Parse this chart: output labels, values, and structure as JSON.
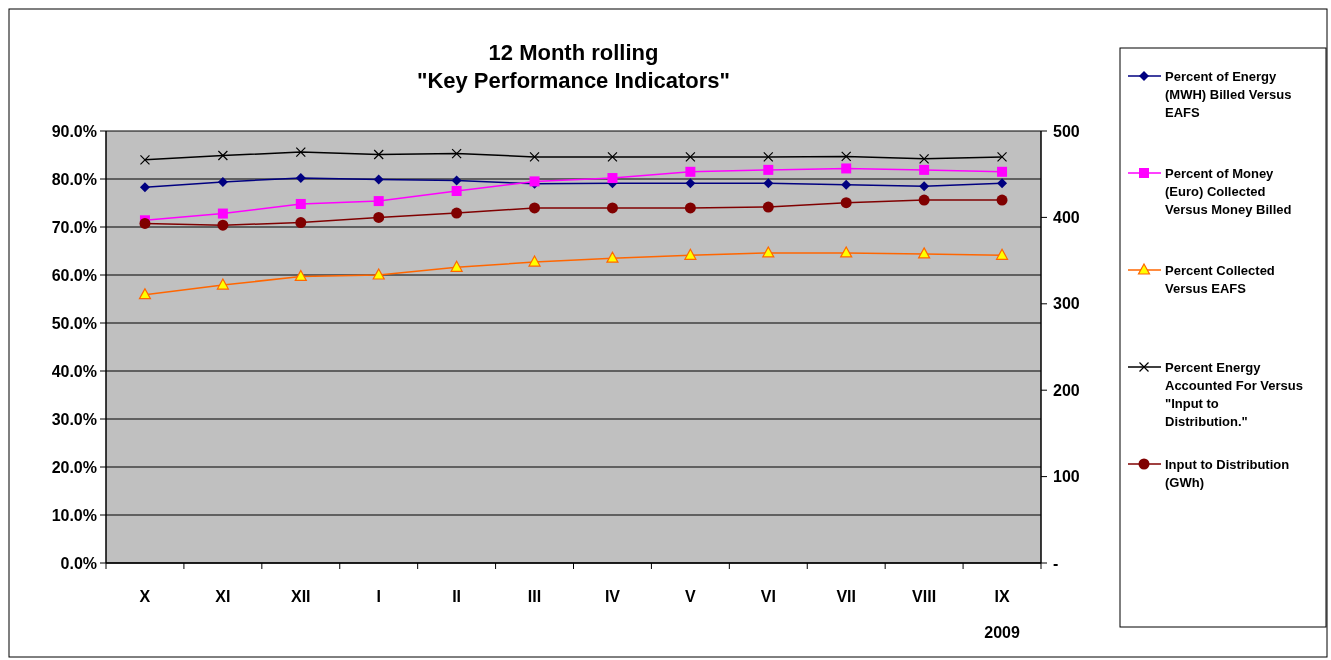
{
  "chart_data": {
    "type": "line",
    "title": "12 Month rolling\n\"Key Performance Indicators\"",
    "xlabel": "2009",
    "categories": [
      "X",
      "XI",
      "XII",
      "I",
      "II",
      "III",
      "IV",
      "V",
      "VI",
      "VII",
      "VIII",
      "IX"
    ],
    "series": [
      {
        "name": "Percent of Energy (MWH) Billed Versus EAFS",
        "color": "#000080",
        "marker": "diamond",
        "values": [
          78.3,
          79.4,
          80.2,
          79.9,
          79.7,
          79.0,
          79.1,
          79.1,
          79.1,
          78.8,
          78.5,
          79.1
        ]
      },
      {
        "name": "Percent of Money (Euro) Collected Versus Money Billed",
        "color": "#ff00ff",
        "marker": "square",
        "values": [
          71.4,
          72.8,
          74.8,
          75.4,
          77.5,
          79.5,
          80.2,
          81.5,
          81.9,
          82.2,
          81.9,
          81.5
        ]
      },
      {
        "name": "Percent Collected Versus EAFS",
        "color": "#ff6600",
        "marker": "triangle",
        "values": [
          55.9,
          57.9,
          59.7,
          60.0,
          61.6,
          62.7,
          63.5,
          64.1,
          64.6,
          64.6,
          64.4,
          64.1
        ]
      },
      {
        "name": "Percent Energy Accounted For Versus \"Input to Distribution.\"",
        "color": "#000000",
        "marker": "cross",
        "values": [
          84.0,
          84.9,
          85.6,
          85.1,
          85.3,
          84.6,
          84.6,
          84.6,
          84.6,
          84.7,
          84.2,
          84.6
        ]
      },
      {
        "name": "Input to Distribution (GWh)",
        "color": "#800000",
        "marker": "circle",
        "axis": "y2",
        "values": [
          393,
          391,
          394,
          400,
          405,
          411,
          411,
          411,
          412,
          417,
          420,
          420
        ]
      }
    ],
    "ylim": [
      0,
      90
    ],
    "yticks": [
      {
        "value": 0,
        "label": "0.0%"
      },
      {
        "value": 10,
        "label": "10.0%"
      },
      {
        "value": 20,
        "label": "20.0%"
      },
      {
        "value": 30,
        "label": "30.0%"
      },
      {
        "value": 40,
        "label": "40.0%"
      },
      {
        "value": 50,
        "label": "50.0%"
      },
      {
        "value": 60,
        "label": "60.0%"
      },
      {
        "value": 70,
        "label": "70.0%"
      },
      {
        "value": 80,
        "label": "80.0%"
      },
      {
        "value": 90,
        "label": "90.0%"
      }
    ],
    "y2lim": [
      0,
      500
    ],
    "y2ticks": [
      {
        "value": 0,
        "label": "-"
      },
      100,
      200,
      300,
      400,
      500
    ],
    "grid": "y",
    "legend": "right"
  }
}
